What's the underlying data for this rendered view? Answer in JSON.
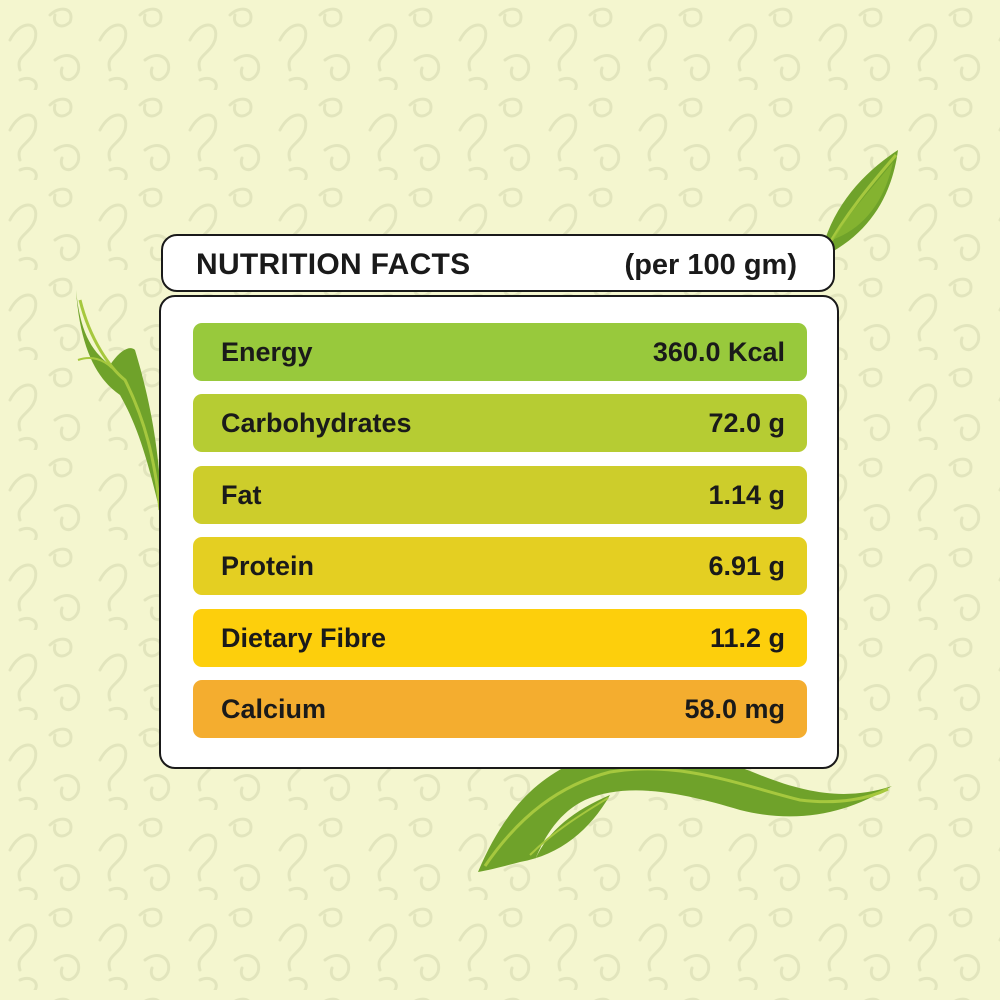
{
  "header": {
    "title": "NUTRITION FACTS",
    "serving": "(per 100 gm)"
  },
  "nutrients": [
    {
      "name": "Energy",
      "value": "360.0 Kcal",
      "color": "#98c93c"
    },
    {
      "name": "Carbohydrates",
      "value": "72.0 g",
      "color": "#b6cc33"
    },
    {
      "name": "Fat",
      "value": "1.14 g",
      "color": "#cdcd2b"
    },
    {
      "name": "Protein",
      "value": "6.91 g",
      "color": "#e4cf22"
    },
    {
      "name": "Dietary Fibre",
      "value": "11.2 g",
      "color": "#fdcf0c"
    },
    {
      "name": "Calcium",
      "value": "58.0 mg",
      "color": "#f4ad2f"
    }
  ],
  "colors": {
    "background": "#f4f6cf",
    "pattern": "#e3e6bf",
    "leaf": "#6fa22a",
    "leaf_light": "#a6c83e",
    "border": "#1a1a1a"
  },
  "icons": [
    "leaf-pattern-icon",
    "leaf-icon"
  ]
}
